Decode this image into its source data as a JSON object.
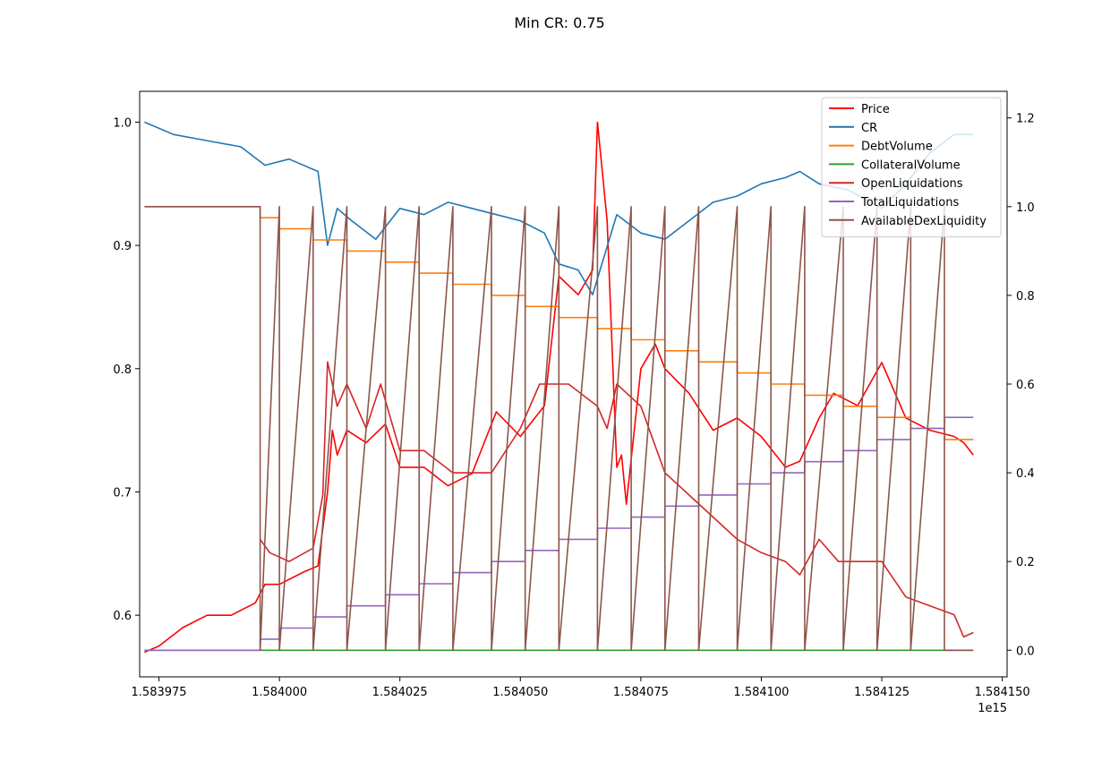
{
  "chart_data": {
    "type": "line",
    "title": "Min CR: 0.75",
    "x_offset_label": "1e15",
    "xlim": [
      1.583971,
      1.584151
    ],
    "ylim_left": [
      0.55,
      1.025
    ],
    "ylim_right": [
      -0.06,
      1.26
    ],
    "x_ticks": [
      1.583975,
      1.584,
      1.584025,
      1.58405,
      1.584075,
      1.5841,
      1.584125,
      1.58415
    ],
    "x_tick_labels": [
      "1.583975",
      "1.584000",
      "1.584025",
      "1.584050",
      "1.584075",
      "1.584100",
      "1.584125",
      "1.584150"
    ],
    "y_left_ticks": [
      0.6,
      0.7,
      0.8,
      0.9,
      1.0
    ],
    "y_left_tick_labels": [
      "0.6",
      "0.7",
      "0.8",
      "0.9",
      "1.0"
    ],
    "y_right_ticks": [
      0.0,
      0.2,
      0.4,
      0.6,
      0.8,
      1.0,
      1.2
    ],
    "y_right_tick_labels": [
      "0.0",
      "0.2",
      "0.4",
      "0.6",
      "0.8",
      "1.0",
      "1.2"
    ],
    "legend_position": "top-right",
    "grid": false,
    "series": [
      {
        "name": "Price",
        "axis": "left",
        "color": "#ff0000",
        "x": [
          1.583972,
          1.583975,
          1.58398,
          1.583985,
          1.58399,
          1.583995,
          1.583997,
          1.584,
          1.584005,
          1.584008,
          1.58401,
          1.584011,
          1.584012,
          1.584014,
          1.584018,
          1.584022,
          1.584025,
          1.58403,
          1.584035,
          1.58404,
          1.584045,
          1.58405,
          1.584055,
          1.584058,
          1.584062,
          1.584065,
          1.584066,
          1.584068,
          1.58407,
          1.584071,
          1.584072,
          1.584075,
          1.584078,
          1.58408,
          1.584085,
          1.58409,
          1.584095,
          1.5841,
          1.584105,
          1.584108,
          1.584112,
          1.584115,
          1.58412,
          1.584125,
          1.58413,
          1.584135,
          1.58414,
          1.584142,
          1.584144
        ],
        "y": [
          0.57,
          0.575,
          0.59,
          0.6,
          0.6,
          0.61,
          0.625,
          0.625,
          0.635,
          0.64,
          0.7,
          0.75,
          0.73,
          0.75,
          0.74,
          0.755,
          0.72,
          0.72,
          0.705,
          0.715,
          0.765,
          0.745,
          0.77,
          0.875,
          0.86,
          0.88,
          1.0,
          0.92,
          0.72,
          0.73,
          0.69,
          0.8,
          0.82,
          0.8,
          0.78,
          0.75,
          0.76,
          0.745,
          0.72,
          0.725,
          0.76,
          0.78,
          0.77,
          0.805,
          0.76,
          0.75,
          0.745,
          0.74,
          0.73
        ]
      },
      {
        "name": "CR",
        "axis": "left",
        "color": "#1f77b4",
        "x": [
          1.583972,
          1.583978,
          1.583985,
          1.583992,
          1.583997,
          1.584002,
          1.584008,
          1.58401,
          1.584012,
          1.584015,
          1.58402,
          1.584025,
          1.58403,
          1.584035,
          1.58404,
          1.584045,
          1.58405,
          1.584055,
          1.584058,
          1.584062,
          1.584065,
          1.58407,
          1.584075,
          1.58408,
          1.584085,
          1.58409,
          1.584095,
          1.5841,
          1.584105,
          1.584108,
          1.584112,
          1.584118,
          1.584125,
          1.58413,
          1.584135,
          1.58414,
          1.584144
        ],
        "y": [
          1.0,
          0.99,
          0.985,
          0.98,
          0.965,
          0.97,
          0.96,
          0.9,
          0.93,
          0.92,
          0.905,
          0.93,
          0.925,
          0.935,
          0.93,
          0.925,
          0.92,
          0.91,
          0.885,
          0.88,
          0.86,
          0.925,
          0.91,
          0.905,
          0.92,
          0.935,
          0.94,
          0.95,
          0.955,
          0.96,
          0.95,
          0.945,
          0.93,
          0.95,
          0.975,
          0.99,
          0.99
        ]
      },
      {
        "name": "DebtVolume",
        "axis": "right",
        "color": "#ff7f0e",
        "x": [
          1.583972,
          1.583996,
          1.584,
          1.584007,
          1.584014,
          1.584022,
          1.584029,
          1.584036,
          1.584044,
          1.584051,
          1.584058,
          1.584066,
          1.584073,
          1.58408,
          1.584087,
          1.584095,
          1.584102,
          1.584109,
          1.584117,
          1.584124,
          1.584131,
          1.584138,
          1.584144
        ],
        "y": [
          1.0,
          0.975,
          0.95,
          0.925,
          0.9,
          0.875,
          0.85,
          0.825,
          0.8,
          0.775,
          0.75,
          0.725,
          0.7,
          0.675,
          0.65,
          0.625,
          0.6,
          0.575,
          0.55,
          0.525,
          0.5,
          0.475,
          0.475
        ],
        "step": true
      },
      {
        "name": "CollateralVolume",
        "axis": "right",
        "color": "#2ca02c",
        "x": [
          1.583972,
          1.584144
        ],
        "y": [
          0.0,
          0.0
        ]
      },
      {
        "name": "OpenLiquidations",
        "axis": "right",
        "color": "#d62728",
        "x": [
          1.583996,
          1.583998,
          1.584002,
          1.584007,
          1.584009,
          1.58401,
          1.584012,
          1.584014,
          1.584018,
          1.584021,
          1.584025,
          1.58403,
          1.584036,
          1.584044,
          1.58405,
          1.584054,
          1.584056,
          1.58406,
          1.584066,
          1.584068,
          1.58407,
          1.584075,
          1.58408,
          1.584085,
          1.58409,
          1.584095,
          1.5841,
          1.584105,
          1.584108,
          1.584112,
          1.584116,
          1.58412,
          1.584125,
          1.58413,
          1.584135,
          1.58414,
          1.584142,
          1.584144
        ],
        "y": [
          0.25,
          0.22,
          0.2,
          0.23,
          0.35,
          0.65,
          0.55,
          0.6,
          0.5,
          0.6,
          0.45,
          0.45,
          0.4,
          0.4,
          0.5,
          0.6,
          0.6,
          0.6,
          0.55,
          0.5,
          0.6,
          0.55,
          0.4,
          0.35,
          0.3,
          0.25,
          0.22,
          0.2,
          0.17,
          0.25,
          0.2,
          0.2,
          0.2,
          0.12,
          0.1,
          0.08,
          0.03,
          0.04
        ]
      },
      {
        "name": "TotalLiquidations",
        "axis": "right",
        "color": "#9467bd",
        "x": [
          1.583972,
          1.583996,
          1.584,
          1.584007,
          1.584014,
          1.584022,
          1.584029,
          1.584036,
          1.584044,
          1.584051,
          1.584058,
          1.584066,
          1.584073,
          1.58408,
          1.584087,
          1.584095,
          1.584102,
          1.584109,
          1.584117,
          1.584124,
          1.584131,
          1.584138,
          1.584144
        ],
        "y": [
          0.0,
          0.025,
          0.05,
          0.075,
          0.1,
          0.125,
          0.15,
          0.175,
          0.2,
          0.225,
          0.25,
          0.275,
          0.3,
          0.325,
          0.35,
          0.375,
          0.4,
          0.425,
          0.45,
          0.475,
          0.5,
          0.525,
          0.525
        ],
        "step": true
      },
      {
        "name": "AvailableDexLiquidity",
        "axis": "right",
        "color": "#8c564b",
        "x": [
          1.583972,
          1.583996,
          1.583996,
          1.584,
          1.584,
          1.584007,
          1.584007,
          1.584014,
          1.584014,
          1.584022,
          1.584022,
          1.584029,
          1.584029,
          1.584036,
          1.584036,
          1.584044,
          1.584044,
          1.584051,
          1.584051,
          1.584058,
          1.584058,
          1.584066,
          1.584066,
          1.584073,
          1.584073,
          1.58408,
          1.58408,
          1.584087,
          1.584087,
          1.584095,
          1.584095,
          1.584102,
          1.584102,
          1.584109,
          1.584109,
          1.584117,
          1.584117,
          1.584124,
          1.584124,
          1.584131,
          1.584131,
          1.584138,
          1.584138,
          1.584144
        ],
        "y": [
          1.0,
          1.0,
          0.0,
          1.0,
          0.0,
          1.0,
          0.0,
          1.0,
          0.0,
          1.0,
          0.0,
          1.0,
          0.0,
          1.0,
          0.0,
          1.0,
          0.0,
          1.0,
          0.0,
          1.0,
          0.0,
          1.0,
          0.0,
          1.0,
          0.0,
          1.0,
          0.0,
          1.0,
          0.0,
          1.0,
          0.0,
          1.0,
          0.0,
          1.0,
          0.0,
          1.0,
          0.0,
          1.0,
          0.0,
          1.0,
          0.0,
          1.0,
          0.0,
          0.0
        ]
      }
    ]
  }
}
